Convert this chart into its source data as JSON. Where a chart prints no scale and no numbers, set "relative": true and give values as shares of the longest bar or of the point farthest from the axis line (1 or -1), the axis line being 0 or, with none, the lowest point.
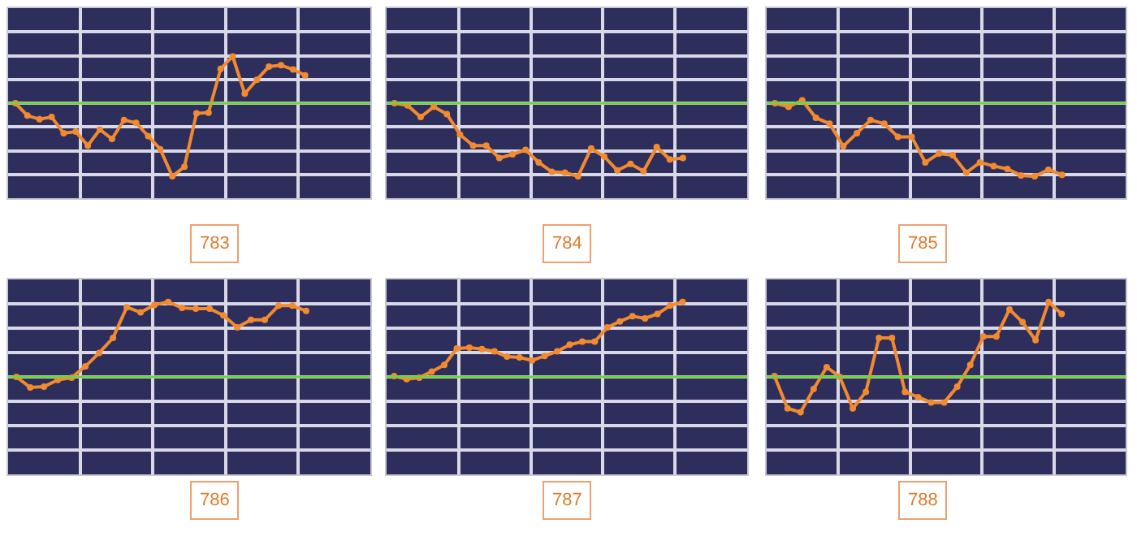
{
  "chart_data": [
    {
      "type": "line",
      "title": "783",
      "relative": true,
      "grid": true,
      "marker": "circle",
      "line_style": "solid",
      "tick_labels": false,
      "categories": [
        null,
        null,
        null,
        null,
        null,
        null,
        null,
        null,
        null,
        null,
        null,
        null,
        null,
        null,
        null,
        null,
        null,
        null,
        null,
        null,
        null,
        null,
        null,
        null,
        null
      ],
      "series": [
        {
          "color": "#f28a30",
          "values": [
            0,
            -0.17,
            -0.22,
            -0.19,
            -0.41,
            -0.39,
            -0.58,
            -0.36,
            -0.49,
            -0.23,
            -0.27,
            -0.45,
            -0.63,
            -1,
            -0.87,
            -0.14,
            -0.13,
            0.47,
            0.64,
            0.13,
            0.32,
            0.5,
            0.52,
            0.46,
            0.38
          ]
        }
      ],
      "ref_lines": [
        {
          "axis": "y",
          "value": 0,
          "color": "#72d13f"
        }
      ]
    },
    {
      "type": "line",
      "title": "784",
      "relative": true,
      "grid": true,
      "marker": "circle",
      "line_style": "solid",
      "tick_labels": false,
      "categories": [
        null,
        null,
        null,
        null,
        null,
        null,
        null,
        null,
        null,
        null,
        null,
        null,
        null,
        null,
        null,
        null,
        null,
        null,
        null,
        null,
        null,
        null,
        null
      ],
      "series": [
        {
          "color": "#f28a30",
          "values": [
            0,
            -0.03,
            -0.19,
            -0.05,
            -0.15,
            -0.43,
            -0.58,
            -0.58,
            -0.75,
            -0.7,
            -0.64,
            -0.81,
            -0.94,
            -0.95,
            -1,
            -0.62,
            -0.73,
            -0.92,
            -0.83,
            -0.93,
            -0.6,
            -0.77,
            -0.75
          ]
        }
      ],
      "ref_lines": [
        {
          "axis": "y",
          "value": 0,
          "color": "#72d13f"
        }
      ]
    },
    {
      "type": "line",
      "title": "785",
      "relative": true,
      "grid": true,
      "marker": "circle",
      "line_style": "solid",
      "tick_labels": false,
      "categories": [
        null,
        null,
        null,
        null,
        null,
        null,
        null,
        null,
        null,
        null,
        null,
        null,
        null,
        null,
        null,
        null,
        null,
        null,
        null,
        null,
        null,
        null
      ],
      "series": [
        {
          "color": "#f28a30",
          "values": [
            0,
            -0.05,
            0.04,
            -0.2,
            -0.28,
            -0.59,
            -0.41,
            -0.23,
            -0.28,
            -0.46,
            -0.46,
            -0.81,
            -0.69,
            -0.71,
            -0.95,
            -0.81,
            -0.86,
            -0.9,
            -0.99,
            -1,
            -0.91,
            -0.98
          ]
        }
      ],
      "ref_lines": [
        {
          "axis": "y",
          "value": 0,
          "color": "#72d13f"
        }
      ]
    },
    {
      "type": "line",
      "title": "786",
      "relative": true,
      "grid": true,
      "marker": "circle",
      "line_style": "solid",
      "tick_labels": false,
      "categories": [
        null,
        null,
        null,
        null,
        null,
        null,
        null,
        null,
        null,
        null,
        null,
        null,
        null,
        null,
        null,
        null,
        null,
        null,
        null,
        null,
        null,
        null
      ],
      "series": [
        {
          "color": "#f28a30",
          "values": [
            0,
            -0.14,
            -0.13,
            -0.04,
            -0.01,
            0.14,
            0.32,
            0.52,
            0.93,
            0.86,
            0.96,
            1,
            0.92,
            0.91,
            0.91,
            0.82,
            0.66,
            0.76,
            0.76,
            0.95,
            0.95,
            0.88
          ]
        }
      ],
      "ref_lines": [
        {
          "axis": "y",
          "value": 0,
          "color": "#72d13f"
        }
      ]
    },
    {
      "type": "line",
      "title": "787",
      "relative": true,
      "grid": true,
      "marker": "circle",
      "line_style": "solid",
      "tick_labels": false,
      "categories": [
        null,
        null,
        null,
        null,
        null,
        null,
        null,
        null,
        null,
        null,
        null,
        null,
        null,
        null,
        null,
        null,
        null,
        null,
        null,
        null,
        null,
        null,
        null,
        null
      ],
      "series": [
        {
          "color": "#f28a30",
          "values": [
            0.01,
            -0.03,
            -0.01,
            0.07,
            0.16,
            0.38,
            0.39,
            0.37,
            0.34,
            0.27,
            0.26,
            0.22,
            0.28,
            0.34,
            0.43,
            0.47,
            0.47,
            0.66,
            0.74,
            0.81,
            0.78,
            0.84,
            0.95,
            1
          ]
        }
      ],
      "ref_lines": [
        {
          "axis": "y",
          "value": 0,
          "color": "#72d13f"
        }
      ]
    },
    {
      "type": "line",
      "title": "788",
      "relative": true,
      "grid": true,
      "marker": "circle",
      "line_style": "solid",
      "tick_labels": false,
      "categories": [
        null,
        null,
        null,
        null,
        null,
        null,
        null,
        null,
        null,
        null,
        null,
        null,
        null,
        null,
        null,
        null,
        null,
        null,
        null,
        null,
        null,
        null,
        null
      ],
      "series": [
        {
          "color": "#f28a30",
          "values": [
            0.01,
            -0.42,
            -0.47,
            -0.16,
            0.13,
            0,
            -0.42,
            -0.2,
            0.52,
            0.52,
            -0.2,
            -0.27,
            -0.34,
            -0.34,
            -0.13,
            0.16,
            0.54,
            0.54,
            0.9,
            0.73,
            0.49,
            1,
            0.84
          ]
        }
      ],
      "ref_lines": [
        {
          "axis": "y",
          "value": 0,
          "color": "#72d13f"
        }
      ]
    }
  ]
}
